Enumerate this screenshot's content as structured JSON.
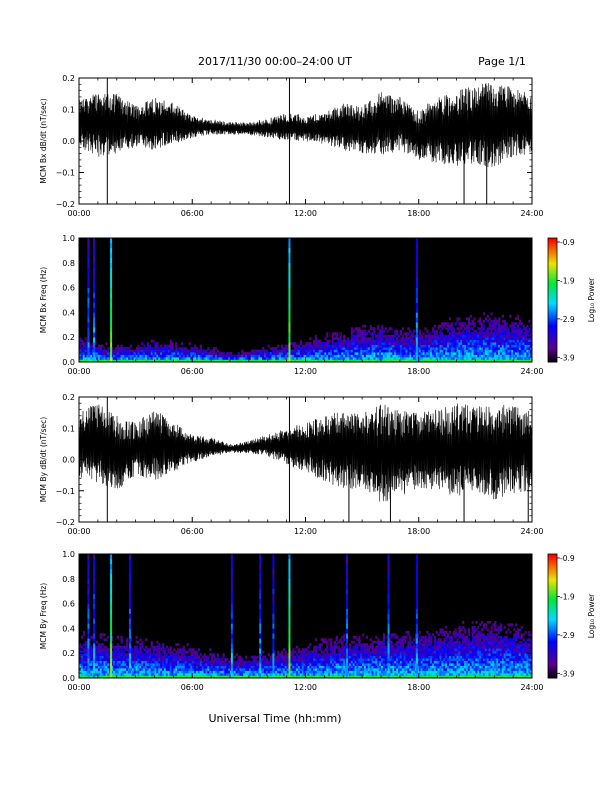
{
  "header": {
    "title": "2017/11/30  00:00–24:00 UT",
    "page": "Page 1/1"
  },
  "footer": {
    "xlabel": "Universal Time (hh:mm)"
  },
  "colorbar": {
    "label": "Log₁₀ Power",
    "ticks": [
      "-0.9",
      "-1.9",
      "-2.9",
      "-3.9"
    ]
  },
  "colors": {
    "trace": "#000000",
    "background": "#ffffff",
    "spectrogram_bg": "#000000"
  },
  "chart_data": [
    {
      "type": "line",
      "ylabel": "MCM Bx dB/dt (nT/sec)",
      "x_ticks": [
        "00:00",
        "06:00",
        "12:00",
        "18:00",
        "24:00"
      ],
      "y_ticks": [
        "0.2",
        "0.1",
        "0.0",
        "−0.1",
        "−0.2"
      ],
      "xlim": [
        0,
        24
      ],
      "ylim": [
        -0.2,
        0.2
      ],
      "series": [
        {
          "x": [
            0,
            1,
            2,
            3,
            4,
            5,
            6,
            7,
            8,
            9,
            10,
            11,
            12,
            13,
            14,
            15,
            16,
            17,
            18,
            19,
            20,
            21,
            22,
            23,
            24
          ],
          "upper": [
            0.13,
            0.16,
            0.15,
            0.11,
            0.14,
            0.12,
            0.08,
            0.07,
            0.06,
            0.06,
            0.07,
            0.09,
            0.08,
            0.09,
            0.12,
            0.11,
            0.16,
            0.14,
            0.1,
            0.14,
            0.16,
            0.18,
            0.19,
            0.17,
            0.15
          ],
          "lower": [
            -0.02,
            -0.05,
            -0.04,
            -0.02,
            -0.03,
            -0.01,
            0.01,
            0.02,
            0.02,
            0.02,
            0.01,
            0.0,
            0.0,
            -0.01,
            -0.03,
            -0.04,
            -0.05,
            -0.03,
            -0.06,
            -0.07,
            -0.08,
            -0.07,
            -0.09,
            -0.05,
            -0.04
          ]
        }
      ],
      "spikes": [
        {
          "x": 1.5,
          "y": -0.2
        },
        {
          "x": 1.5,
          "y": 0.2
        },
        {
          "x": 11.15,
          "y": -0.2
        },
        {
          "x": 11.15,
          "y": 0.2
        },
        {
          "x": 20.4,
          "y": -0.2
        },
        {
          "x": 21.6,
          "y": -0.2
        }
      ]
    },
    {
      "type": "heatmap",
      "ylabel": "MCM Bx Freq (Hz)",
      "x_ticks": [
        "00:00",
        "06:00",
        "12:00",
        "18:00",
        "24:00"
      ],
      "y_ticks": [
        "1.0",
        "0.8",
        "0.6",
        "0.4",
        "0.2",
        "0.0"
      ],
      "xlim": [
        0,
        24
      ],
      "ylim": [
        0,
        1
      ],
      "zlim": [
        -3.9,
        -0.9
      ],
      "band_hours": [
        0,
        2,
        4,
        6,
        8,
        10,
        12,
        14,
        16,
        18,
        20,
        22,
        24
      ],
      "band_top_hz": [
        0.15,
        0.1,
        0.14,
        0.12,
        0.06,
        0.1,
        0.14,
        0.2,
        0.24,
        0.2,
        0.28,
        0.3,
        0.26
      ],
      "vertical_lines_hours": [
        0.5,
        0.8,
        1.7,
        11.15,
        17.9
      ]
    },
    {
      "type": "line",
      "ylabel": "MCM By dB/dt (nT/sec)",
      "x_ticks": [
        "00:00",
        "06:00",
        "12:00",
        "18:00",
        "24:00"
      ],
      "y_ticks": [
        "0.2",
        "0.1",
        "0.0",
        "−0.1",
        "−0.2"
      ],
      "xlim": [
        0,
        24
      ],
      "ylim": [
        -0.2,
        0.2
      ],
      "series": [
        {
          "x": [
            0,
            1,
            2,
            3,
            4,
            5,
            6,
            7,
            8,
            9,
            10,
            11,
            12,
            13,
            14,
            15,
            16,
            17,
            18,
            19,
            20,
            21,
            22,
            23,
            24
          ],
          "upper": [
            0.16,
            0.18,
            0.14,
            0.12,
            0.16,
            0.12,
            0.08,
            0.07,
            0.05,
            0.06,
            0.08,
            0.1,
            0.12,
            0.14,
            0.16,
            0.15,
            0.18,
            0.16,
            0.15,
            0.16,
            0.18,
            0.17,
            0.18,
            0.17,
            0.16
          ],
          "lower": [
            -0.06,
            -0.08,
            -0.1,
            -0.05,
            -0.07,
            -0.04,
            -0.01,
            0.01,
            0.02,
            0.02,
            0.01,
            -0.02,
            -0.04,
            -0.07,
            -0.1,
            -0.09,
            -0.14,
            -0.12,
            -0.09,
            -0.11,
            -0.12,
            -0.1,
            -0.13,
            -0.11,
            -0.1
          ]
        }
      ],
      "spikes": [
        {
          "x": 1.5,
          "y": -0.2
        },
        {
          "x": 1.5,
          "y": 0.2
        },
        {
          "x": 11.15,
          "y": -0.2
        },
        {
          "x": 11.15,
          "y": 0.2
        },
        {
          "x": 14.3,
          "y": -0.2
        },
        {
          "x": 16.5,
          "y": -0.2
        },
        {
          "x": 20.4,
          "y": -0.2
        },
        {
          "x": 23.8,
          "y": -0.2
        }
      ]
    },
    {
      "type": "heatmap",
      "ylabel": "MCM By Freq (Hz)",
      "x_ticks": [
        "00:00",
        "06:00",
        "12:00",
        "18:00",
        "24:00"
      ],
      "y_ticks": [
        "1.0",
        "0.8",
        "0.6",
        "0.4",
        "0.2",
        "0.0"
      ],
      "xlim": [
        0,
        24
      ],
      "ylim": [
        0,
        1
      ],
      "zlim": [
        -3.9,
        -0.9
      ],
      "band_hours": [
        0,
        2,
        4,
        6,
        8,
        10,
        12,
        14,
        16,
        18,
        20,
        22,
        24
      ],
      "band_top_hz": [
        0.28,
        0.26,
        0.24,
        0.2,
        0.14,
        0.16,
        0.22,
        0.26,
        0.28,
        0.3,
        0.34,
        0.36,
        0.32
      ],
      "vertical_lines_hours": [
        0.5,
        0.8,
        1.7,
        2.7,
        8.1,
        9.6,
        10.3,
        11.15,
        14.2,
        16.4,
        17.9
      ]
    }
  ]
}
